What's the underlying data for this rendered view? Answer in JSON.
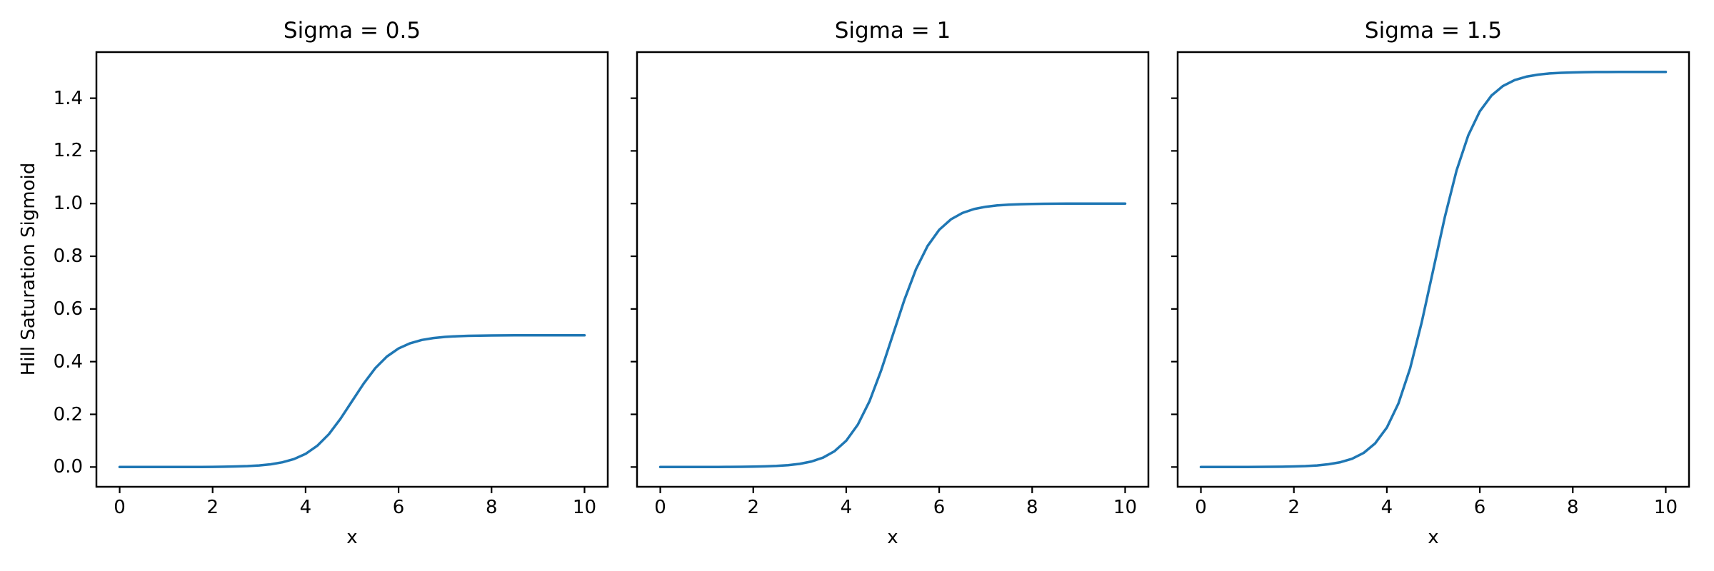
{
  "chart_data": {
    "type": "line",
    "xlabel": "x",
    "ylabel": "Hill Saturation Sigmoid",
    "xlim": [
      -0.5,
      10.5
    ],
    "ylim": [
      -0.075,
      1.575
    ],
    "xticks": [
      0,
      2,
      4,
      6,
      8,
      10
    ],
    "yticks": [
      0.0,
      0.2,
      0.4,
      0.6,
      0.8,
      1.0,
      1.2,
      1.4
    ],
    "ytick_labels": [
      "0.0",
      "0.2",
      "0.4",
      "0.6",
      "0.8",
      "1.0",
      "1.2",
      "1.4"
    ],
    "grid": false,
    "legend": null,
    "line_color": "#1f77b4",
    "axis_color": "#000000",
    "background_color": "#ffffff",
    "x": [
      0,
      0.25,
      0.5,
      0.75,
      1,
      1.25,
      1.5,
      1.75,
      2,
      2.25,
      2.5,
      2.75,
      3,
      3.25,
      3.5,
      3.75,
      4,
      4.25,
      4.5,
      4.75,
      5,
      5.25,
      5.5,
      5.75,
      6,
      6.25,
      6.5,
      6.75,
      7,
      7.25,
      7.5,
      7.75,
      8,
      8.25,
      8.5,
      8.75,
      9,
      9.25,
      9.5,
      9.75,
      10
    ],
    "series": [
      {
        "title": "Sigma = 0.5",
        "sigma": 0.5,
        "saturation": 0.5,
        "values": [
          0.0,
          0.0,
          0.0,
          0.0001,
          0.0001,
          0.0002,
          0.0003,
          0.0004,
          0.0007,
          0.0012,
          0.0021,
          0.0035,
          0.0061,
          0.0104,
          0.0178,
          0.0301,
          0.0499,
          0.0805,
          0.1248,
          0.183,
          0.25,
          0.317,
          0.3752,
          0.4195,
          0.4501,
          0.4699,
          0.4822,
          0.4896,
          0.4939,
          0.4965,
          0.498,
          0.4988,
          0.4993,
          0.4996,
          0.4998,
          0.4998,
          0.4999,
          0.4999,
          0.5,
          0.5,
          0.5
        ]
      },
      {
        "title": "Sigma = 1",
        "sigma": 1,
        "saturation": 1.0,
        "values": [
          0.0,
          0.0,
          0.0001,
          0.0001,
          0.0002,
          0.0003,
          0.0005,
          0.0008,
          0.0014,
          0.0024,
          0.0041,
          0.007,
          0.0121,
          0.0208,
          0.0356,
          0.0601,
          0.0997,
          0.1611,
          0.2497,
          0.3659,
          0.5,
          0.6341,
          0.7503,
          0.8389,
          0.9003,
          0.9399,
          0.9644,
          0.9792,
          0.9879,
          0.993,
          0.9959,
          0.9976,
          0.9986,
          0.9992,
          0.9995,
          0.9997,
          0.9998,
          0.9999,
          0.9999,
          1.0,
          1.0
        ]
      },
      {
        "title": "Sigma = 1.5",
        "sigma": 1.5,
        "saturation": 1.5,
        "values": [
          0.0,
          0.0,
          0.0001,
          0.0002,
          0.0003,
          0.0005,
          0.0008,
          0.0012,
          0.0021,
          0.0036,
          0.0061,
          0.0106,
          0.0182,
          0.0312,
          0.0533,
          0.0901,
          0.1496,
          0.2417,
          0.3745,
          0.5489,
          0.75,
          0.9511,
          1.1255,
          1.2583,
          1.3504,
          1.4099,
          1.4467,
          1.4688,
          1.4818,
          1.4894,
          1.4939,
          1.4964,
          1.4979,
          1.4988,
          1.4993,
          1.4995,
          1.4997,
          1.4998,
          1.4999,
          1.5,
          1.5
        ]
      }
    ]
  }
}
